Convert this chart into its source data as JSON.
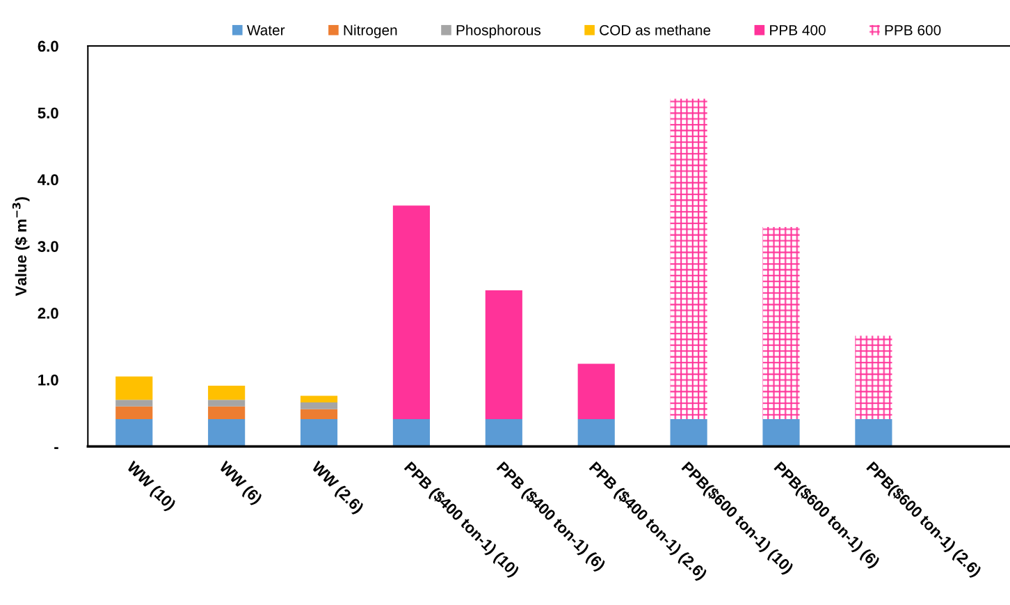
{
  "chart_data": {
    "type": "bar",
    "stacked": true,
    "ylabel": "Value ($ m$^{−3}$)",
    "categories": [
      "WW (10)",
      "WW (6)",
      "WW (2.6)",
      "PPB ($400 ton-1) (10)",
      "PPB ($400 ton-1) (6)",
      "PPB ($400 ton-1) (2.6)",
      "PPB($600 ton-1) (10)",
      "PPB($600 ton-1) (6)",
      "PPB($600 ton-1) (2.6)"
    ],
    "series": [
      {
        "name": "Water",
        "color": "#5b9bd5",
        "values": [
          0.41,
          0.41,
          0.41,
          0.41,
          0.41,
          0.41,
          0.41,
          0.41,
          0.41
        ]
      },
      {
        "name": "Nitrogen",
        "color": "#ed7d31",
        "values": [
          0.19,
          0.19,
          0.15,
          null,
          null,
          null,
          null,
          null,
          null
        ]
      },
      {
        "name": "Phosphorous",
        "color": "#a5a5a5",
        "values": [
          0.1,
          0.1,
          0.1,
          null,
          null,
          null,
          null,
          null,
          null
        ]
      },
      {
        "name": "COD as methane",
        "color": "#ffc000",
        "values": [
          0.35,
          0.21,
          0.1,
          null,
          null,
          null,
          null,
          null,
          null
        ]
      },
      {
        "name": "PPB 400",
        "color": "#ff3399",
        "values": [
          null,
          null,
          null,
          3.2,
          1.93,
          0.83,
          null,
          null,
          null
        ]
      },
      {
        "name": "PPB 600",
        "color": "#ff3399",
        "values": [
          null,
          null,
          null,
          null,
          null,
          null,
          4.8,
          2.88,
          1.25
        ]
      }
    ],
    "ylim": [
      0,
      6
    ],
    "yticks": [
      {
        "value": 0,
        "label": "-"
      },
      {
        "value": 1,
        "label": "1.0"
      },
      {
        "value": 2,
        "label": "2.0"
      },
      {
        "value": 3,
        "label": "3.0"
      },
      {
        "value": 4,
        "label": "4.0"
      },
      {
        "value": 5,
        "label": "5.0"
      },
      {
        "value": 6,
        "label": "6.0"
      }
    ],
    "grid": false,
    "legend": "top"
  }
}
